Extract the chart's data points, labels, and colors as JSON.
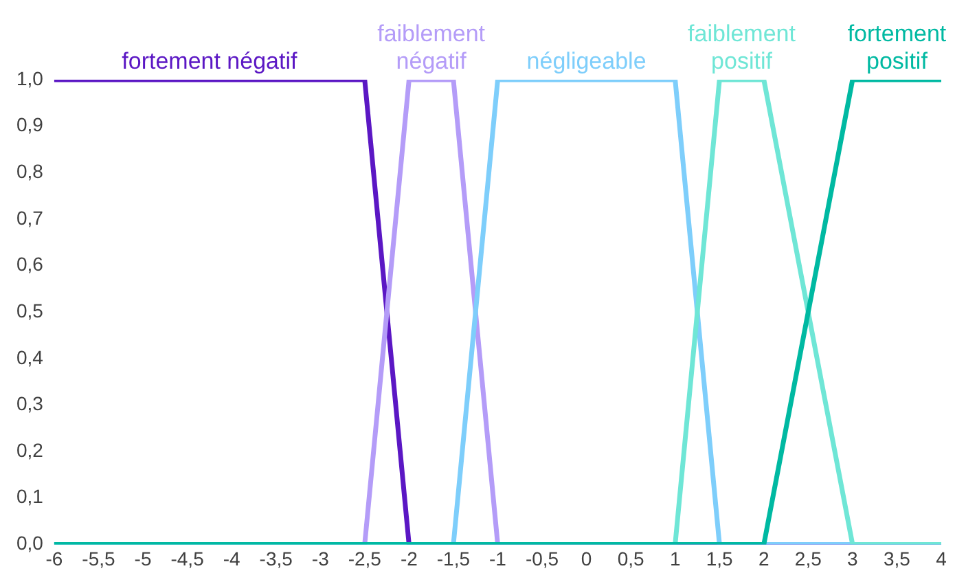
{
  "chart_data": {
    "type": "line",
    "series": [
      {
        "name": "fortement négatif",
        "color": "#5b17c4",
        "x": [
          -6,
          -2.5,
          -2,
          4
        ],
        "values": [
          1,
          1,
          0,
          0
        ]
      },
      {
        "name": "faiblement négatif",
        "color": "#b49cf8",
        "x": [
          -6,
          -2.5,
          -2,
          -1.5,
          -1,
          4
        ],
        "values": [
          0,
          0,
          1,
          1,
          0,
          0
        ]
      },
      {
        "name": "négligeable",
        "color": "#7ecefb",
        "x": [
          -6,
          -1.5,
          -1,
          1,
          1.5,
          4
        ],
        "values": [
          0,
          0,
          1,
          1,
          0,
          0
        ]
      },
      {
        "name": "faiblement positif",
        "color": "#6fe6d6",
        "x": [
          -6,
          1,
          1.5,
          2,
          3,
          4
        ],
        "values": [
          0,
          0,
          1,
          1,
          0,
          0
        ]
      },
      {
        "name": "fortement positif",
        "color": "#00b9a2",
        "x": [
          -6,
          2,
          3,
          4
        ],
        "values": [
          0,
          0,
          1,
          1
        ]
      }
    ],
    "xlim": [
      -6,
      4
    ],
    "xticks": [
      -6,
      {
        "value": -5.5,
        "label": "-5,5"
      },
      -5,
      {
        "value": -4.5,
        "label": "-4,5"
      },
      -4,
      {
        "value": -3.5,
        "label": "-3,5"
      },
      -3,
      {
        "value": -2.5,
        "label": "-2,5"
      },
      -2,
      {
        "value": -1.5,
        "label": "-1,5"
      },
      -1,
      {
        "value": -0.5,
        "label": "-0,5"
      },
      0,
      {
        "value": 0.5,
        "label": "0,5"
      },
      1,
      {
        "value": 1.5,
        "label": "1,5"
      },
      2,
      {
        "value": 2.5,
        "label": "2,5"
      },
      3,
      {
        "value": 3.5,
        "label": "3,5"
      },
      4
    ],
    "ylim": [
      0,
      1
    ],
    "yticks": [
      {
        "value": 0,
        "label": "0,0"
      },
      {
        "value": 0.1,
        "label": "0,1"
      },
      {
        "value": 0.2,
        "label": "0,2"
      },
      {
        "value": 0.3,
        "label": "0,3"
      },
      {
        "value": 0.4,
        "label": "0,4"
      },
      {
        "value": 0.5,
        "label": "0,5"
      },
      {
        "value": 0.6,
        "label": "0,6"
      },
      {
        "value": 0.7,
        "label": "0,7"
      },
      {
        "value": 0.8,
        "label": "0,8"
      },
      {
        "value": 0.9,
        "label": "0,9"
      },
      {
        "value": 1,
        "label": "1,0"
      }
    ],
    "grid": false,
    "legend": false,
    "marker": "none",
    "line_style": "solid"
  }
}
